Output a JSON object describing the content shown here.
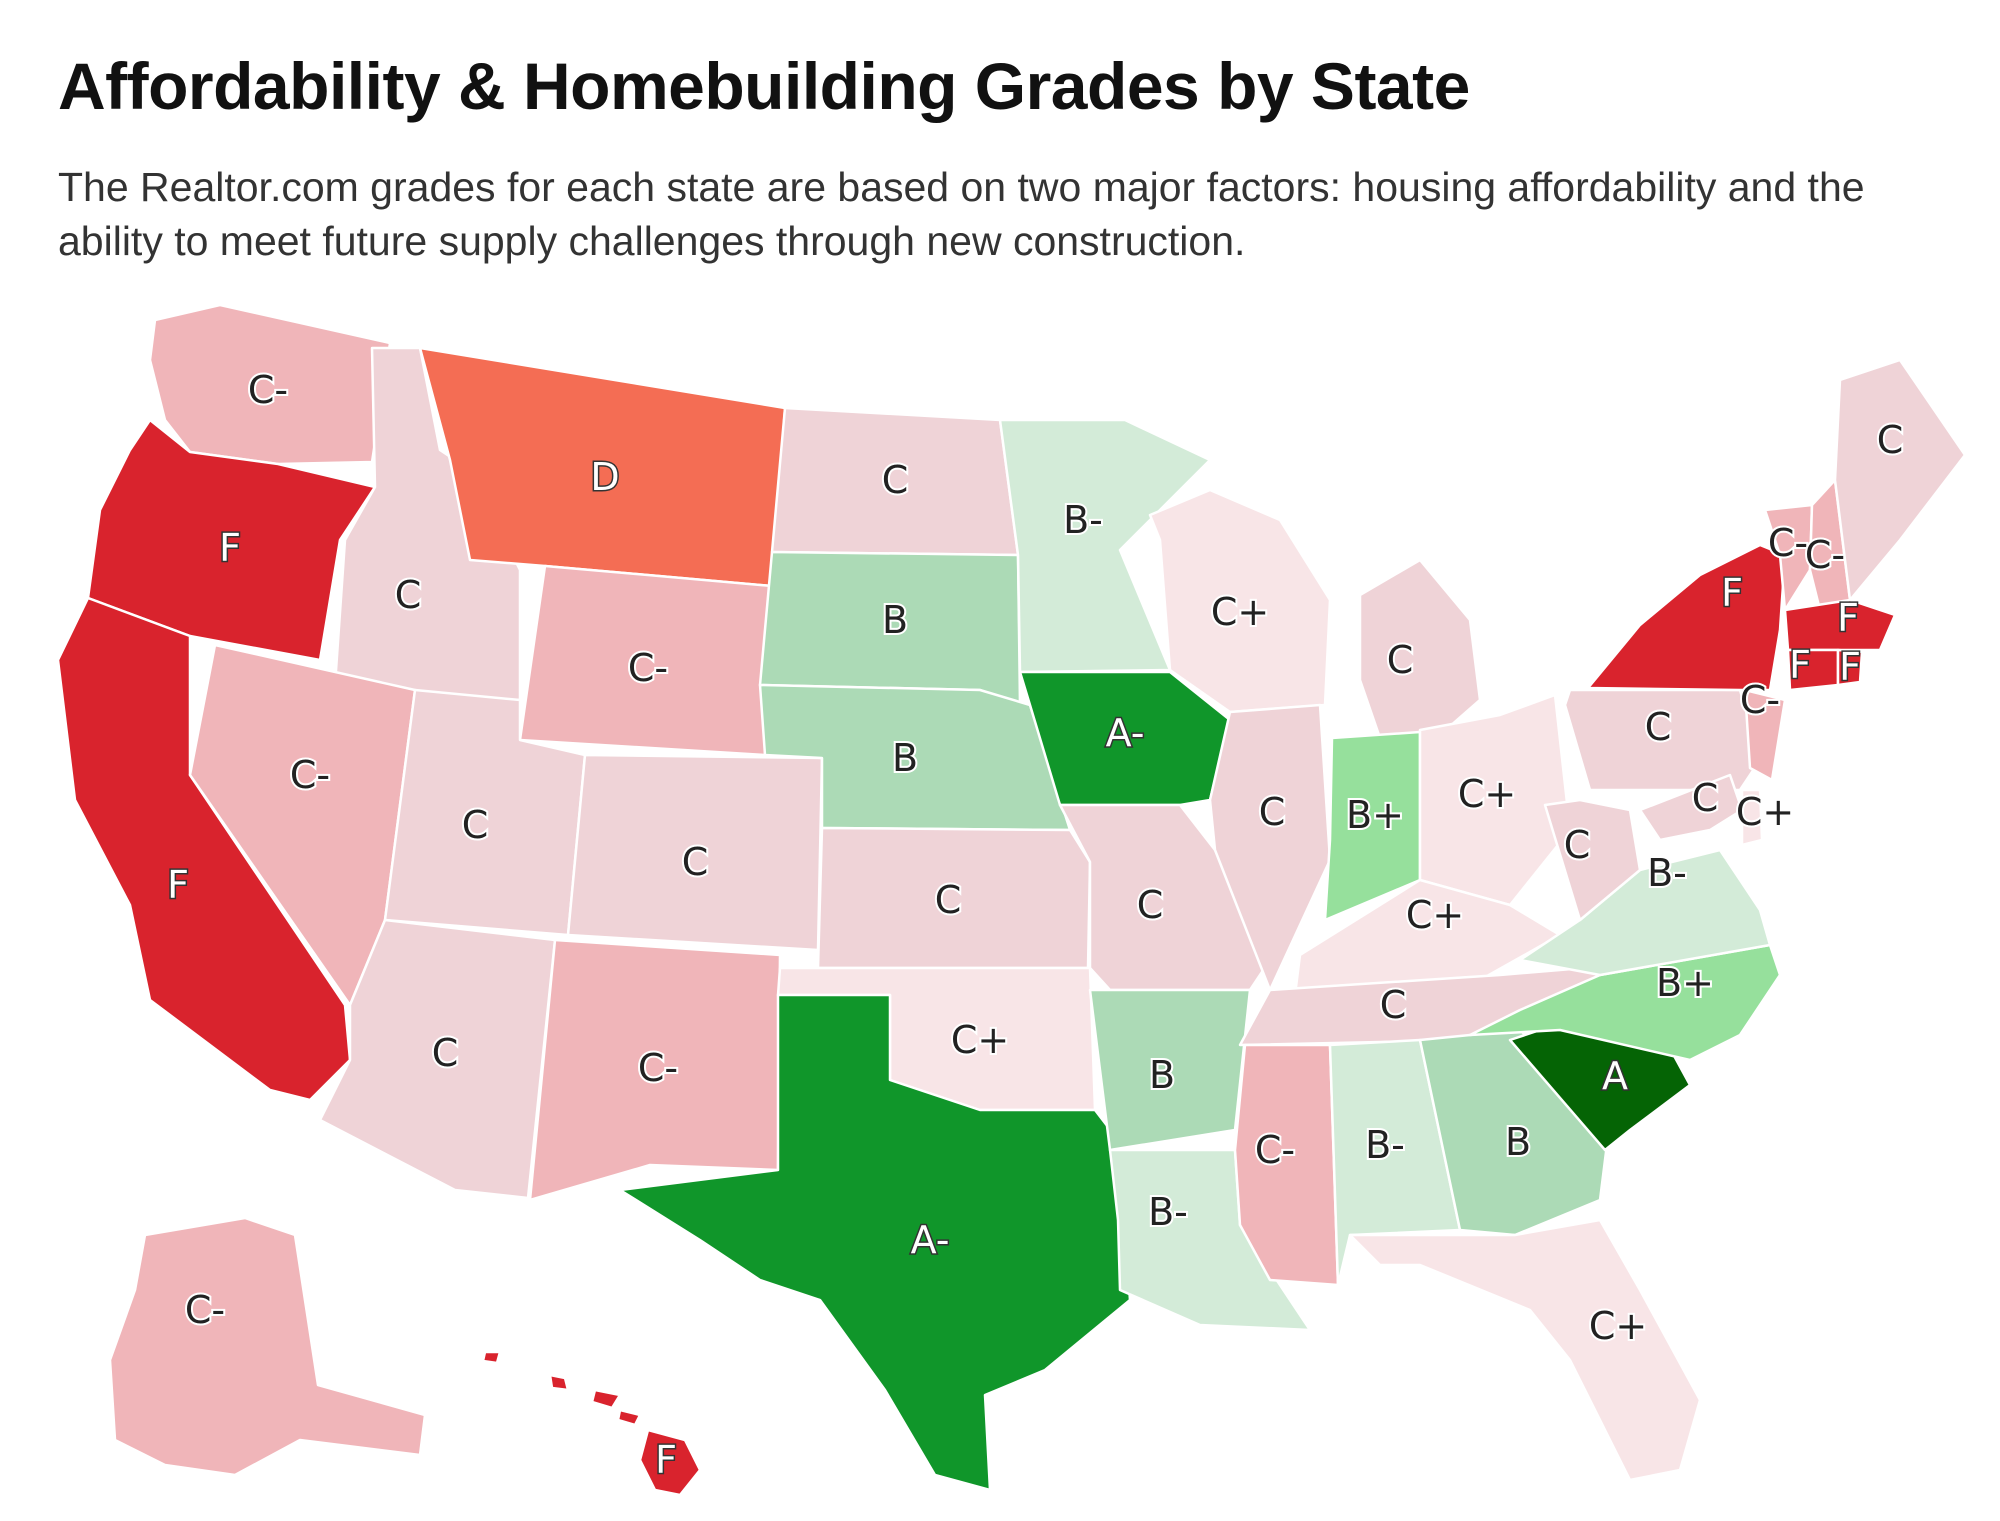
{
  "header": {
    "title": "Affordability & Homebuilding Grades by State",
    "subtitle": "The Realtor.com grades for each state are based on two major factors: housing affordability and the ability to meet future supply challenges through new construction."
  },
  "grade_colors": {
    "A": "#056405",
    "A-": "#10962a",
    "B+": "#96e09c",
    "B": "#acdab6",
    "B-": "#d3ebd8",
    "C+": "#f8e5e7",
    "C": "#efd3d7",
    "C-": "#f0b5b9",
    "D": "#f46d54",
    "F": "#d9232d"
  },
  "states": [
    {
      "id": "WA",
      "grade": "C-"
    },
    {
      "id": "OR",
      "grade": "F"
    },
    {
      "id": "CA",
      "grade": "F"
    },
    {
      "id": "ID",
      "grade": "C"
    },
    {
      "id": "NV",
      "grade": "C-"
    },
    {
      "id": "MT",
      "grade": "D"
    },
    {
      "id": "WY",
      "grade": "C-"
    },
    {
      "id": "UT",
      "grade": "C"
    },
    {
      "id": "CO",
      "grade": "C"
    },
    {
      "id": "AZ",
      "grade": "C"
    },
    {
      "id": "NM",
      "grade": "C-"
    },
    {
      "id": "ND",
      "grade": "C"
    },
    {
      "id": "SD",
      "grade": "B"
    },
    {
      "id": "NE",
      "grade": "B"
    },
    {
      "id": "KS",
      "grade": "C"
    },
    {
      "id": "OK",
      "grade": "C+"
    },
    {
      "id": "TX",
      "grade": "A-"
    },
    {
      "id": "MN",
      "grade": "B-"
    },
    {
      "id": "IA",
      "grade": "A-"
    },
    {
      "id": "MO",
      "grade": "C"
    },
    {
      "id": "AR",
      "grade": "B"
    },
    {
      "id": "LA",
      "grade": "B-"
    },
    {
      "id": "WI",
      "grade": "C+"
    },
    {
      "id": "IL",
      "grade": "C"
    },
    {
      "id": "MI",
      "grade": "C"
    },
    {
      "id": "IN",
      "grade": "B+"
    },
    {
      "id": "OH",
      "grade": "C+"
    },
    {
      "id": "KY",
      "grade": "C+"
    },
    {
      "id": "TN",
      "grade": "C"
    },
    {
      "id": "MS",
      "grade": "C-"
    },
    {
      "id": "AL",
      "grade": "B-"
    },
    {
      "id": "GA",
      "grade": "B"
    },
    {
      "id": "FL",
      "grade": "C+"
    },
    {
      "id": "SC",
      "grade": "A"
    },
    {
      "id": "NC",
      "grade": "B+"
    },
    {
      "id": "VA",
      "grade": "B-"
    },
    {
      "id": "WV",
      "grade": "C"
    },
    {
      "id": "PA",
      "grade": "C"
    },
    {
      "id": "NY",
      "grade": "F"
    },
    {
      "id": "VT",
      "grade": "C-"
    },
    {
      "id": "NH",
      "grade": "C-"
    },
    {
      "id": "ME",
      "grade": "C"
    },
    {
      "id": "MA",
      "grade": "F"
    },
    {
      "id": "CT",
      "grade": "F"
    },
    {
      "id": "RI",
      "grade": "F"
    },
    {
      "id": "NJ",
      "grade": "C-"
    },
    {
      "id": "MD",
      "grade": "C"
    },
    {
      "id": "DE",
      "grade": "C+"
    },
    {
      "id": "AK",
      "grade": "C-"
    },
    {
      "id": "HI",
      "grade": "F"
    }
  ]
}
